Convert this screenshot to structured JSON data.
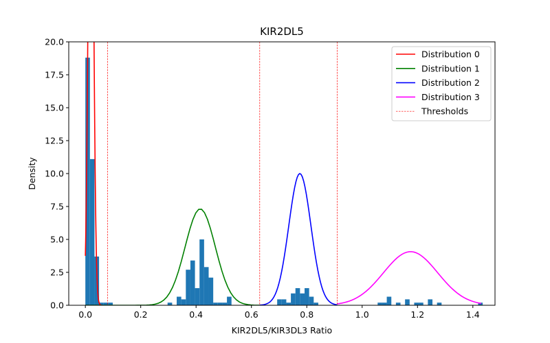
{
  "chart_data": {
    "type": "histogram+line",
    "title": "KIR2DL5",
    "xlabel": "KIR2DL5/KIR3DL3 Ratio",
    "ylabel": "Density",
    "xlim": [
      -0.06,
      1.48
    ],
    "ylim": [
      0,
      20
    ],
    "xticks": [
      "0.0",
      "0.2",
      "0.4",
      "0.6",
      "0.8",
      "1.0",
      "1.2",
      "1.4"
    ],
    "xtick_values": [
      0.0,
      0.2,
      0.4,
      0.6,
      0.8,
      1.0,
      1.2,
      1.4
    ],
    "yticks": [
      "0.0",
      "2.5",
      "5.0",
      "7.5",
      "10.0",
      "12.5",
      "15.0",
      "17.5",
      "20.0"
    ],
    "ytick_values": [
      0,
      2.5,
      5,
      7.5,
      10,
      12.5,
      15,
      17.5,
      20
    ],
    "legend_position": "top-right",
    "histogram": {
      "color": "#1f77b4",
      "bin_width": 0.0165,
      "bins": [
        {
          "x": 0.0,
          "density": 18.8
        },
        {
          "x": 0.0165,
          "density": 11.1
        },
        {
          "x": 0.033,
          "density": 3.7
        },
        {
          "x": 0.0495,
          "density": 0.2
        },
        {
          "x": 0.066,
          "density": 0.2
        },
        {
          "x": 0.0825,
          "density": 0.2
        },
        {
          "x": 0.297,
          "density": 0.2
        },
        {
          "x": 0.33,
          "density": 0.65
        },
        {
          "x": 0.3465,
          "density": 0.45
        },
        {
          "x": 0.363,
          "density": 2.7
        },
        {
          "x": 0.3795,
          "density": 3.4
        },
        {
          "x": 0.396,
          "density": 1.3
        },
        {
          "x": 0.4125,
          "density": 5.0
        },
        {
          "x": 0.429,
          "density": 2.9
        },
        {
          "x": 0.4455,
          "density": 2.1
        },
        {
          "x": 0.462,
          "density": 0.2
        },
        {
          "x": 0.4785,
          "density": 0.2
        },
        {
          "x": 0.495,
          "density": 0.2
        },
        {
          "x": 0.5115,
          "density": 0.65
        },
        {
          "x": 0.693,
          "density": 0.45
        },
        {
          "x": 0.7095,
          "density": 0.45
        },
        {
          "x": 0.726,
          "density": 0.2
        },
        {
          "x": 0.7425,
          "density": 0.9
        },
        {
          "x": 0.759,
          "density": 1.3
        },
        {
          "x": 0.7755,
          "density": 0.9
        },
        {
          "x": 0.792,
          "density": 1.3
        },
        {
          "x": 0.8085,
          "density": 0.65
        },
        {
          "x": 0.825,
          "density": 0.2
        },
        {
          "x": 1.056,
          "density": 0.2
        },
        {
          "x": 1.0725,
          "density": 0.2
        },
        {
          "x": 1.089,
          "density": 0.65
        },
        {
          "x": 1.122,
          "density": 0.2
        },
        {
          "x": 1.155,
          "density": 0.45
        },
        {
          "x": 1.188,
          "density": 0.2
        },
        {
          "x": 1.2045,
          "density": 0.2
        },
        {
          "x": 1.2375,
          "density": 0.45
        },
        {
          "x": 1.2705,
          "density": 0.2
        },
        {
          "x": 1.419,
          "density": 0.2
        }
      ]
    },
    "series": [
      {
        "name": "Distribution 0",
        "color": "#ff0000",
        "kind": "normal",
        "mean": 0.02,
        "sd": 0.009,
        "xrange": [
          0.0,
          0.06
        ],
        "clip_top": true
      },
      {
        "name": "Distribution 1",
        "color": "#008000",
        "kind": "normal",
        "mean": 0.415,
        "sd": 0.0545,
        "xrange": [
          0.0,
          0.63
        ]
      },
      {
        "name": "Distribution 2",
        "color": "#0000ff",
        "kind": "normal",
        "mean": 0.775,
        "sd": 0.0399,
        "xrange": [
          0.63,
          0.91
        ]
      },
      {
        "name": "Distribution 3",
        "color": "#ff00ff",
        "kind": "normal",
        "mean": 1.175,
        "sd": 0.098,
        "xrange": [
          0.91,
          1.43
        ]
      }
    ],
    "thresholds": {
      "name": "Thresholds",
      "color": "#ff0000",
      "values": [
        0.08,
        0.63,
        0.91
      ]
    }
  }
}
